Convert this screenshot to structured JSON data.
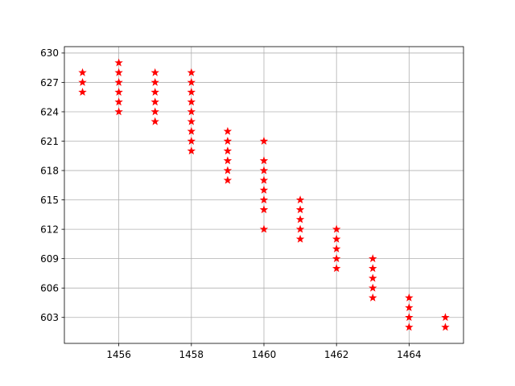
{
  "chart_data": {
    "type": "scatter",
    "title": "",
    "xlabel": "",
    "ylabel": "",
    "xlim": [
      1454.5,
      1465.5
    ],
    "ylim": [
      600.35,
      630.65
    ],
    "x_ticks": [
      1456,
      1458,
      1460,
      1462,
      1464
    ],
    "y_ticks": [
      603,
      606,
      609,
      612,
      615,
      618,
      621,
      624,
      627,
      630
    ],
    "grid": true,
    "marker": "star",
    "marker_color": "#ff0000",
    "grid_color": "#b0b0b0",
    "series": [
      {
        "points": [
          [
            1455,
            628
          ],
          [
            1455,
            627
          ],
          [
            1455,
            626
          ],
          [
            1456,
            629
          ],
          [
            1456,
            628
          ],
          [
            1456,
            627
          ],
          [
            1456,
            626
          ],
          [
            1456,
            625
          ],
          [
            1456,
            624
          ],
          [
            1457,
            628
          ],
          [
            1457,
            627
          ],
          [
            1457,
            626
          ],
          [
            1457,
            625
          ],
          [
            1457,
            624
          ],
          [
            1457,
            623
          ],
          [
            1458,
            628
          ],
          [
            1458,
            627
          ],
          [
            1458,
            626
          ],
          [
            1458,
            625
          ],
          [
            1458,
            624
          ],
          [
            1458,
            623
          ],
          [
            1458,
            622
          ],
          [
            1458,
            621
          ],
          [
            1458,
            620
          ],
          [
            1459,
            622
          ],
          [
            1459,
            621
          ],
          [
            1459,
            620
          ],
          [
            1459,
            619
          ],
          [
            1459,
            618
          ],
          [
            1459,
            617
          ],
          [
            1460,
            621
          ],
          [
            1460,
            619
          ],
          [
            1460,
            618
          ],
          [
            1460,
            617
          ],
          [
            1460,
            616
          ],
          [
            1460,
            615
          ],
          [
            1460,
            614
          ],
          [
            1460,
            612
          ],
          [
            1461,
            615
          ],
          [
            1461,
            614
          ],
          [
            1461,
            613
          ],
          [
            1461,
            612
          ],
          [
            1461,
            611
          ],
          [
            1462,
            612
          ],
          [
            1462,
            611
          ],
          [
            1462,
            610
          ],
          [
            1462,
            609
          ],
          [
            1462,
            608
          ],
          [
            1463,
            609
          ],
          [
            1463,
            608
          ],
          [
            1463,
            607
          ],
          [
            1463,
            606
          ],
          [
            1463,
            605
          ],
          [
            1464,
            605
          ],
          [
            1464,
            604
          ],
          [
            1464,
            603
          ],
          [
            1464,
            602
          ],
          [
            1465,
            603
          ],
          [
            1465,
            602
          ]
        ]
      }
    ]
  }
}
